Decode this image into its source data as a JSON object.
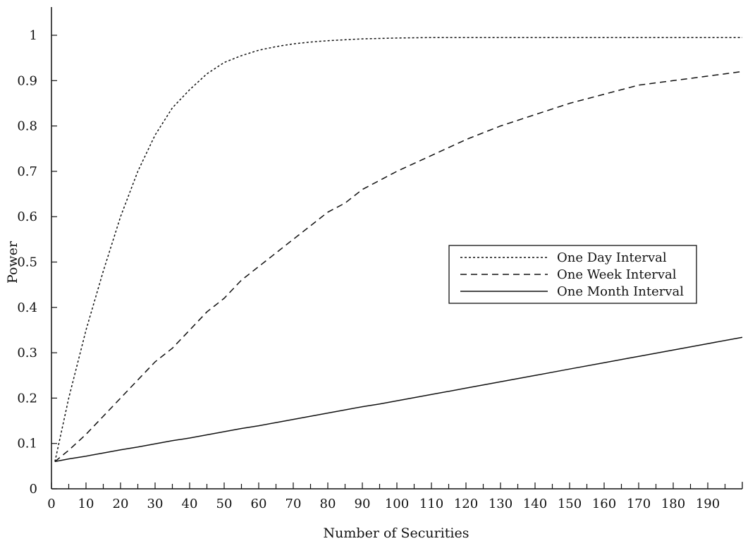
{
  "chart_data": {
    "type": "line",
    "title": "",
    "xlabel": "Number of Securities",
    "ylabel": "Power",
    "xlim": [
      0,
      200
    ],
    "ylim": [
      0,
      1.05
    ],
    "x_ticks": [
      0,
      10,
      20,
      30,
      40,
      50,
      60,
      70,
      80,
      90,
      100,
      110,
      120,
      130,
      140,
      150,
      160,
      170,
      180,
      190
    ],
    "x_tick_labels": [
      "0",
      "10",
      "20",
      "30",
      "40",
      "50",
      "60",
      "70",
      "80",
      "90",
      "100",
      "110",
      "120",
      "130",
      "140",
      "150",
      "160",
      "170",
      "180",
      "190"
    ],
    "y_ticks": [
      0,
      0.1,
      0.2,
      0.3,
      0.4,
      0.5,
      0.6,
      0.7,
      0.8,
      0.9,
      1
    ],
    "y_tick_labels": [
      "0",
      "0.1",
      "0.2",
      "0.3",
      "0.4",
      "0.5",
      "0.6",
      "0.7",
      "0.8",
      "0.9",
      "1"
    ],
    "grid": false,
    "legend_position": "center-right",
    "x": [
      1,
      5,
      10,
      15,
      20,
      25,
      30,
      35,
      40,
      45,
      50,
      55,
      60,
      65,
      70,
      75,
      80,
      85,
      90,
      95,
      100,
      110,
      120,
      130,
      140,
      150,
      160,
      170,
      180,
      190,
      200
    ],
    "series": [
      {
        "name": "One Day Interval",
        "style": "dotted",
        "color": "#111111",
        "values": [
          0.06,
          0.2,
          0.35,
          0.48,
          0.6,
          0.7,
          0.78,
          0.84,
          0.88,
          0.915,
          0.94,
          0.955,
          0.967,
          0.975,
          0.981,
          0.985,
          0.988,
          0.99,
          0.992,
          0.993,
          0.994,
          0.995,
          0.995,
          0.995,
          0.995,
          0.995,
          0.995,
          0.995,
          0.995,
          0.995,
          0.995
        ]
      },
      {
        "name": "One Week Interval",
        "style": "dashed",
        "color": "#111111",
        "values": [
          0.06,
          0.085,
          0.12,
          0.16,
          0.2,
          0.24,
          0.28,
          0.31,
          0.35,
          0.39,
          0.42,
          0.46,
          0.49,
          0.52,
          0.55,
          0.58,
          0.61,
          0.63,
          0.66,
          0.68,
          0.7,
          0.735,
          0.77,
          0.8,
          0.825,
          0.85,
          0.87,
          0.89,
          0.9,
          0.91,
          0.92
        ],
        "values_note_removed": true
      },
      {
        "name": "One Month Interval",
        "style": "solid",
        "color": "#111111",
        "values": [
          0.06,
          0.066,
          0.072,
          0.079,
          0.086,
          0.092,
          0.099,
          0.106,
          0.112,
          0.119,
          0.126,
          0.133,
          0.139,
          0.146,
          0.153,
          0.16,
          0.167,
          0.174,
          0.181,
          0.187,
          0.194,
          0.208,
          0.222,
          0.236,
          0.25,
          0.264,
          0.278,
          0.292,
          0.306,
          0.32,
          0.334
        ]
      }
    ]
  }
}
